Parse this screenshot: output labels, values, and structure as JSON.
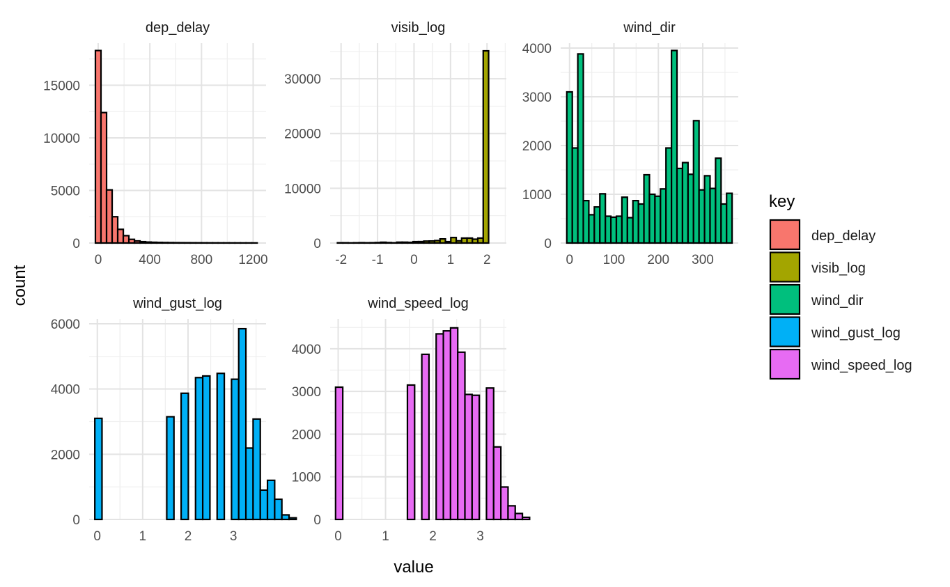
{
  "chart_data": {
    "type": "bar",
    "layout": "facet-wrap histograms, 3 columns, free scales",
    "xlabel": "value",
    "ylabel": "count",
    "legend": {
      "title": "key",
      "placement": "right",
      "entries": [
        {
          "name": "dep_delay",
          "color": "#F8766D"
        },
        {
          "name": "visib_log",
          "color": "#A3A500"
        },
        {
          "name": "wind_dir",
          "color": "#00BF7D"
        },
        {
          "name": "wind_gust_log",
          "color": "#00B0F6"
        },
        {
          "name": "wind_speed_log",
          "color": "#E76BF3"
        }
      ]
    },
    "grid": true,
    "bar_outline": "#000000",
    "panels": [
      {
        "title": "dep_delay",
        "color": "#F8766D",
        "xlim": [
          -70,
          1300
        ],
        "ylim": [
          0,
          19000
        ],
        "xticks": [
          0,
          400,
          800,
          1200
        ],
        "xtick_labels": [
          "0",
          "400",
          "800",
          "1200"
        ],
        "yticks": [
          0,
          5000,
          10000,
          15000
        ],
        "ytick_labels": [
          "0",
          "5000",
          "10000",
          "15000"
        ],
        "bin_start": -21.5,
        "bin_width": 43.2,
        "values": [
          18300,
          12400,
          5050,
          2500,
          1300,
          700,
          350,
          200,
          130,
          90,
          70,
          55,
          45,
          38,
          32,
          28,
          25,
          22,
          20,
          18,
          16,
          15,
          14,
          13,
          12,
          11,
          10,
          10,
          9
        ]
      },
      {
        "title": "visib_log",
        "color": "#A3A500",
        "xlim": [
          -2.3,
          2.53
        ],
        "ylim": [
          0,
          36500
        ],
        "xticks": [
          -2,
          -1,
          0,
          1,
          2
        ],
        "xtick_labels": [
          "-2",
          "-1",
          "0",
          "1",
          "2"
        ],
        "yticks": [
          0,
          10000,
          20000,
          30000
        ],
        "ytick_labels": [
          "0",
          "10000",
          "20000",
          "30000"
        ],
        "bin_start": -2.1,
        "bin_width": 0.148,
        "values": [
          40,
          40,
          20,
          40,
          60,
          40,
          50,
          80,
          140,
          80,
          40,
          150,
          150,
          120,
          250,
          260,
          350,
          370,
          450,
          750,
          250,
          1000,
          400,
          900,
          900,
          700,
          900,
          35100
        ]
      },
      {
        "title": "wind_dir",
        "color": "#00BF7D",
        "xlim": [
          -20,
          380
        ],
        "ylim": [
          0,
          4100
        ],
        "xticks": [
          0,
          100,
          200,
          300
        ],
        "xtick_labels": [
          "0",
          "100",
          "200",
          "300"
        ],
        "yticks": [
          0,
          1000,
          2000,
          3000,
          4000
        ],
        "ytick_labels": [
          "0",
          "1000",
          "2000",
          "3000",
          "4000"
        ],
        "bin_start": -6.2,
        "bin_width": 12.41,
        "values": [
          3100,
          1950,
          3880,
          870,
          580,
          740,
          1010,
          550,
          530,
          550,
          940,
          520,
          870,
          800,
          1400,
          1000,
          960,
          1110,
          1950,
          3950,
          1530,
          1650,
          1410,
          2510,
          1090,
          1380,
          1120,
          1740,
          800,
          1020
        ]
      },
      {
        "title": "wind_gust_log",
        "color": "#00B0F6",
        "xlim": [
          -0.18,
          3.72
        ],
        "ylim": [
          0,
          6150
        ],
        "xticks": [
          0,
          1,
          2,
          3
        ],
        "xtick_labels": [
          "0",
          "1",
          "2",
          "3"
        ],
        "yticks": [
          0,
          2000,
          4000,
          6000
        ],
        "ytick_labels": [
          "0",
          "2000",
          "4000",
          "6000"
        ],
        "bin_start": -0.055,
        "bin_width": 0.1586,
        "values": [
          3100,
          0,
          0,
          0,
          0,
          0,
          0,
          0,
          0,
          0,
          3150,
          0,
          3870,
          0,
          4350,
          4400,
          0,
          4480,
          0,
          4300,
          5850,
          2190,
          3080,
          900,
          1200,
          620,
          140,
          50
        ]
      },
      {
        "title": "wind_speed_log",
        "color": "#E76BF3",
        "xlim": [
          -0.17,
          3.55
        ],
        "ylim": [
          0,
          4700
        ],
        "xticks": [
          0,
          1,
          2,
          3
        ],
        "xtick_labels": [
          "0",
          "1",
          "2",
          "3"
        ],
        "yticks": [
          0,
          1000,
          2000,
          3000,
          4000
        ],
        "ytick_labels": [
          "0",
          "1000",
          "2000",
          "3000",
          "4000"
        ],
        "bin_start": -0.055,
        "bin_width": 0.1517,
        "values": [
          3100,
          0,
          0,
          0,
          0,
          0,
          0,
          0,
          0,
          0,
          3150,
          0,
          3870,
          0,
          4350,
          4420,
          4490,
          3920,
          2930,
          2910,
          0,
          3080,
          1700,
          760,
          320,
          140,
          50
        ]
      }
    ]
  }
}
